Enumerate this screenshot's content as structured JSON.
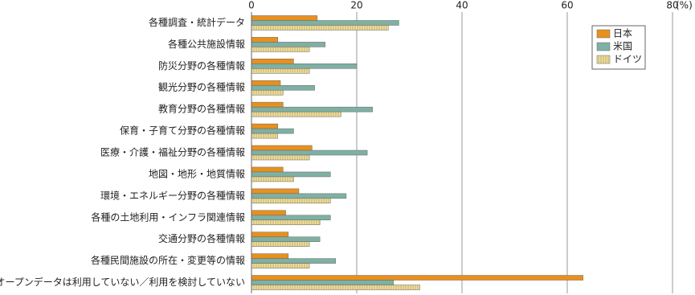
{
  "chart_data": {
    "type": "hbar",
    "categories": [
      "各種調査・統計データ",
      "各種公共施設情報",
      "防災分野の各種情報",
      "観光分野の各種情報",
      "教育分野の各種情報",
      "保育・子育て分野の各種情報",
      "医療・介護・福祉分野の各種情報",
      "地図・地形・地質情報",
      "環境・エネルギー分野の各種情報",
      "各種の土地利用・インフラ関連情報",
      "交通分野の各種情報",
      "各種民間施設の所在・変更等の情報",
      "オープンデータは利用していない／利用を検討していない"
    ],
    "series": [
      {
        "name": "日本",
        "color": "#e8901e",
        "values": [
          12.5,
          5,
          8,
          5.5,
          6,
          5,
          11.5,
          6,
          9,
          6.5,
          7,
          7,
          63
        ]
      },
      {
        "name": "米国",
        "color": "#7fb0a3",
        "values": [
          28,
          14,
          20,
          12,
          23,
          8,
          22,
          15,
          18,
          15,
          13,
          16,
          27
        ]
      },
      {
        "name": "ドイツ",
        "color": "#efe0a0",
        "hatch": true,
        "values": [
          26,
          11,
          11,
          6,
          17,
          5,
          11,
          8,
          15,
          13,
          11,
          11,
          32
        ]
      }
    ],
    "xlim": [
      0,
      80
    ],
    "xticks": [
      0,
      20,
      40,
      60,
      80
    ],
    "x_unit": "(%)",
    "grid": true,
    "legend": "upper-right"
  }
}
